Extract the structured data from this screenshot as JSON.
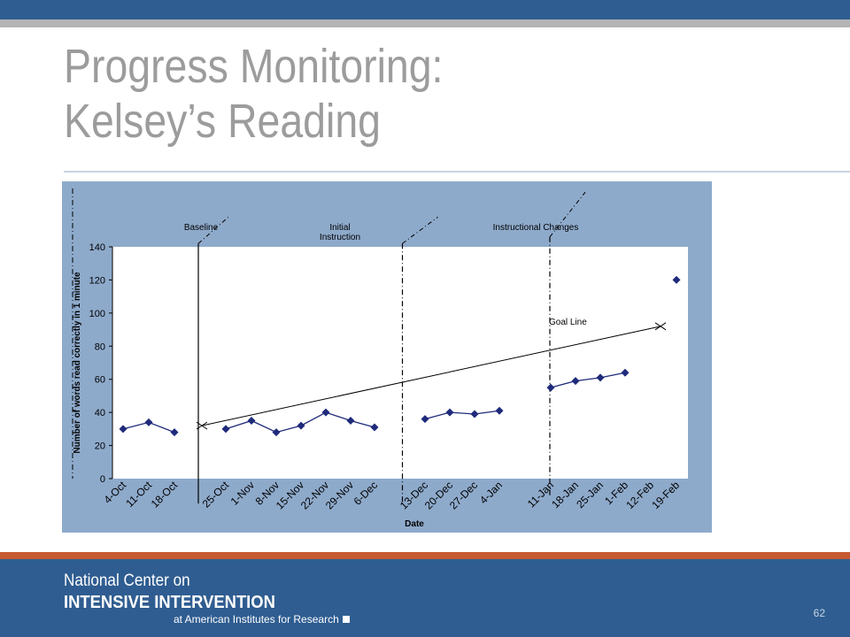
{
  "slide": {
    "title_line1": "Progress Monitoring:",
    "title_line2": "Kelsey’s Reading",
    "page_number": "62"
  },
  "footer": {
    "line1": "National Center on",
    "line2": "INTENSIVE INTERVENTION",
    "line3": "at American Institutes for Research"
  },
  "colors": {
    "top_bar": "#2f5d91",
    "accent_orange": "#c55a32",
    "chart_frame": "#8eaacb",
    "plot_area": "#ffffff",
    "series": "#1f2a7a"
  },
  "chart_data": {
    "type": "line",
    "xlabel": "Date",
    "ylabel": "Number of words read correctly in 1 minute",
    "ylim": [
      0,
      140
    ],
    "yticks": [
      0,
      20,
      40,
      60,
      80,
      100,
      120,
      140
    ],
    "categories": [
      "4-Oct",
      "11-Oct",
      "18-Oct",
      "25-Oct",
      "1-Nov",
      "8-Nov",
      "15-Nov",
      "22-Nov",
      "29-Nov",
      "6-Dec",
      "13-Dec",
      "20-Dec",
      "27-Dec",
      "4-Jan",
      "11-Jan",
      "18-Jan",
      "25-Jan",
      "1-Feb",
      "12-Feb",
      "19-Feb"
    ],
    "phase_labels": [
      {
        "lines": [
          "Baseline"
        ]
      },
      {
        "lines": [
          "Initial",
          "Instruction"
        ]
      },
      {
        "lines": [
          "Instructional Changes"
        ]
      }
    ],
    "goal_label": "Goal Line",
    "goal_line": {
      "start": 32,
      "end": 92
    },
    "series": [
      {
        "points": [
          {
            "x": "4-Oct",
            "y": 30
          },
          {
            "x": "11-Oct",
            "y": 34
          },
          {
            "x": "18-Oct",
            "y": 28
          }
        ]
      },
      {
        "points": [
          {
            "x": "25-Oct",
            "y": 30
          },
          {
            "x": "1-Nov",
            "y": 35
          },
          {
            "x": "8-Nov",
            "y": 28
          },
          {
            "x": "15-Nov",
            "y": 32
          },
          {
            "x": "22-Nov",
            "y": 40
          },
          {
            "x": "29-Nov",
            "y": 35
          },
          {
            "x": "6-Dec",
            "y": 31
          }
        ]
      },
      {
        "points": [
          {
            "x": "13-Dec",
            "y": 36
          },
          {
            "x": "20-Dec",
            "y": 40
          },
          {
            "x": "27-Dec",
            "y": 39
          },
          {
            "x": "4-Jan",
            "y": 41
          }
        ]
      },
      {
        "points": [
          {
            "x": "11-Jan",
            "y": 55
          },
          {
            "x": "18-Jan",
            "y": 59
          },
          {
            "x": "25-Jan",
            "y": 61
          },
          {
            "x": "1-Feb",
            "y": 64
          }
        ]
      },
      {
        "points": [
          {
            "x": "19-Feb",
            "y": 120
          }
        ]
      }
    ]
  }
}
